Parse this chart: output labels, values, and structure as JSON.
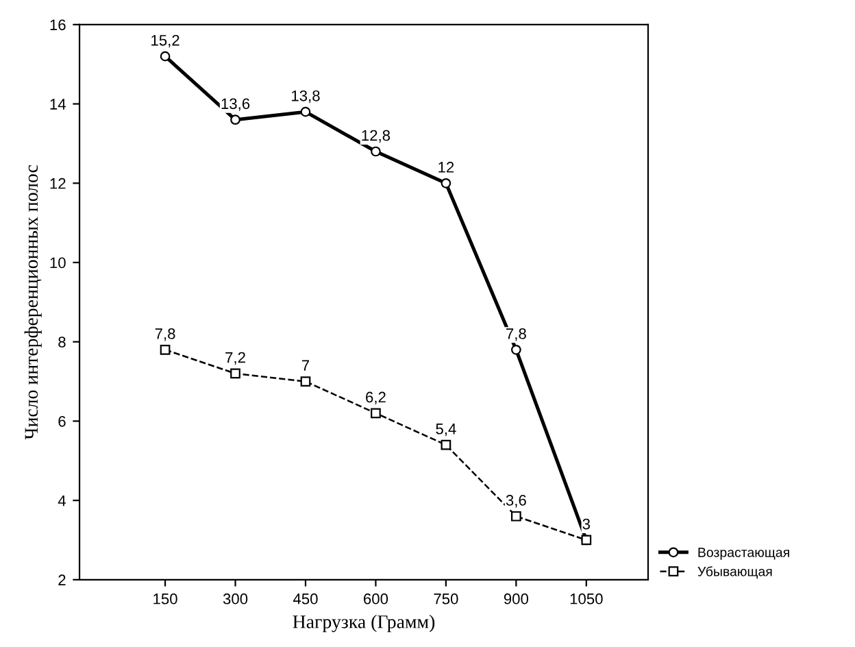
{
  "chart_data": {
    "type": "line",
    "xlabel": "Нагрузка (Грамм)",
    "ylabel": "Число интерференционных полос",
    "categories": [
      "150",
      "300",
      "450",
      "600",
      "750",
      "900",
      "1050"
    ],
    "ylim": [
      2,
      16
    ],
    "yticks": [
      2,
      4,
      6,
      8,
      10,
      12,
      14,
      16
    ],
    "grid": false,
    "legend": "bottom right",
    "series": [
      {
        "name": "Возрастающая",
        "color": "#000000",
        "marker": "circle",
        "line_style": "solid",
        "values": [
          15.2,
          13.6,
          13.8,
          12.8,
          12,
          7.8,
          3
        ],
        "value_labels": [
          "15,2",
          "13,6",
          "13,8",
          "12,8",
          "12",
          "7,8",
          "3"
        ]
      },
      {
        "name": "Убывающая",
        "color": "#000000",
        "marker": "square",
        "line_style": "dashed",
        "values": [
          7.8,
          7.2,
          7,
          6.2,
          5.4,
          3.6,
          3
        ],
        "value_labels": [
          "7,8",
          "7,2",
          "7",
          "6,2",
          "5,4",
          "3,6",
          null
        ]
      }
    ]
  }
}
